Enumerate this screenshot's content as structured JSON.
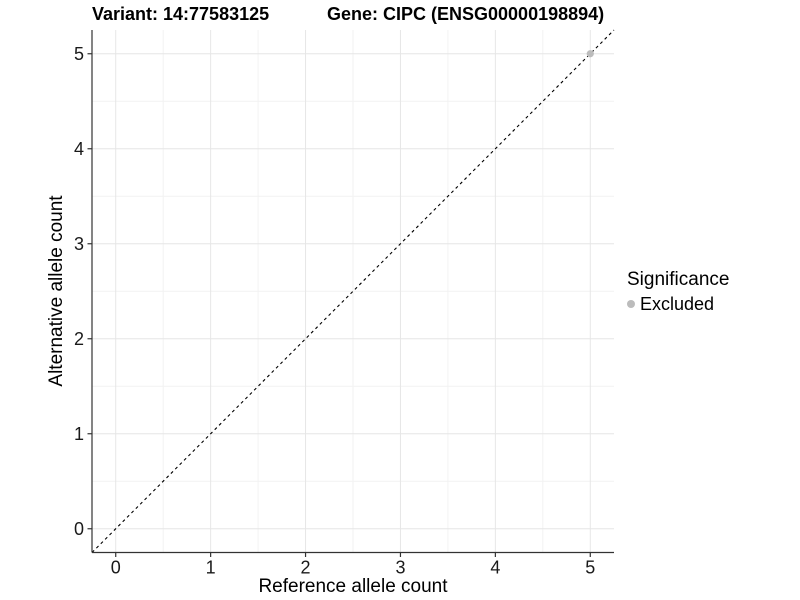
{
  "chart_data": {
    "type": "scatter",
    "title_left": "Variant: 14:77583125",
    "title_right": "Gene: CIPC (ENSG00000198894)",
    "xlabel": "Reference allele count",
    "ylabel": "Alternative allele count",
    "xlim": [
      -0.25,
      5.25
    ],
    "ylim": [
      -0.25,
      5.25
    ],
    "xticks": [
      0,
      1,
      2,
      3,
      4,
      5
    ],
    "yticks": [
      0,
      1,
      2,
      3,
      4,
      5
    ],
    "minor_grid_step": 0.5,
    "grid": true,
    "identity_line": {
      "style": "dashed",
      "color": "#000000",
      "from": [
        -0.25,
        -0.25
      ],
      "to": [
        5.25,
        5.25
      ]
    },
    "series": [
      {
        "name": "Excluded",
        "color": "#bcbcbc",
        "points": [
          [
            5,
            5
          ]
        ],
        "point_radius": 3.6
      }
    ],
    "legend": {
      "title": "Significance",
      "position": "right",
      "entries": [
        {
          "label": "Excluded",
          "color": "#bcbcbc",
          "marker": "circle"
        }
      ]
    },
    "style": {
      "background": "#ffffff",
      "grid_major": "#e6e6e6",
      "grid_minor": "#f2f2f2",
      "axis_color": "#333333",
      "tick_label_color": "#1a1a1a",
      "tick_label_size": 18
    }
  }
}
